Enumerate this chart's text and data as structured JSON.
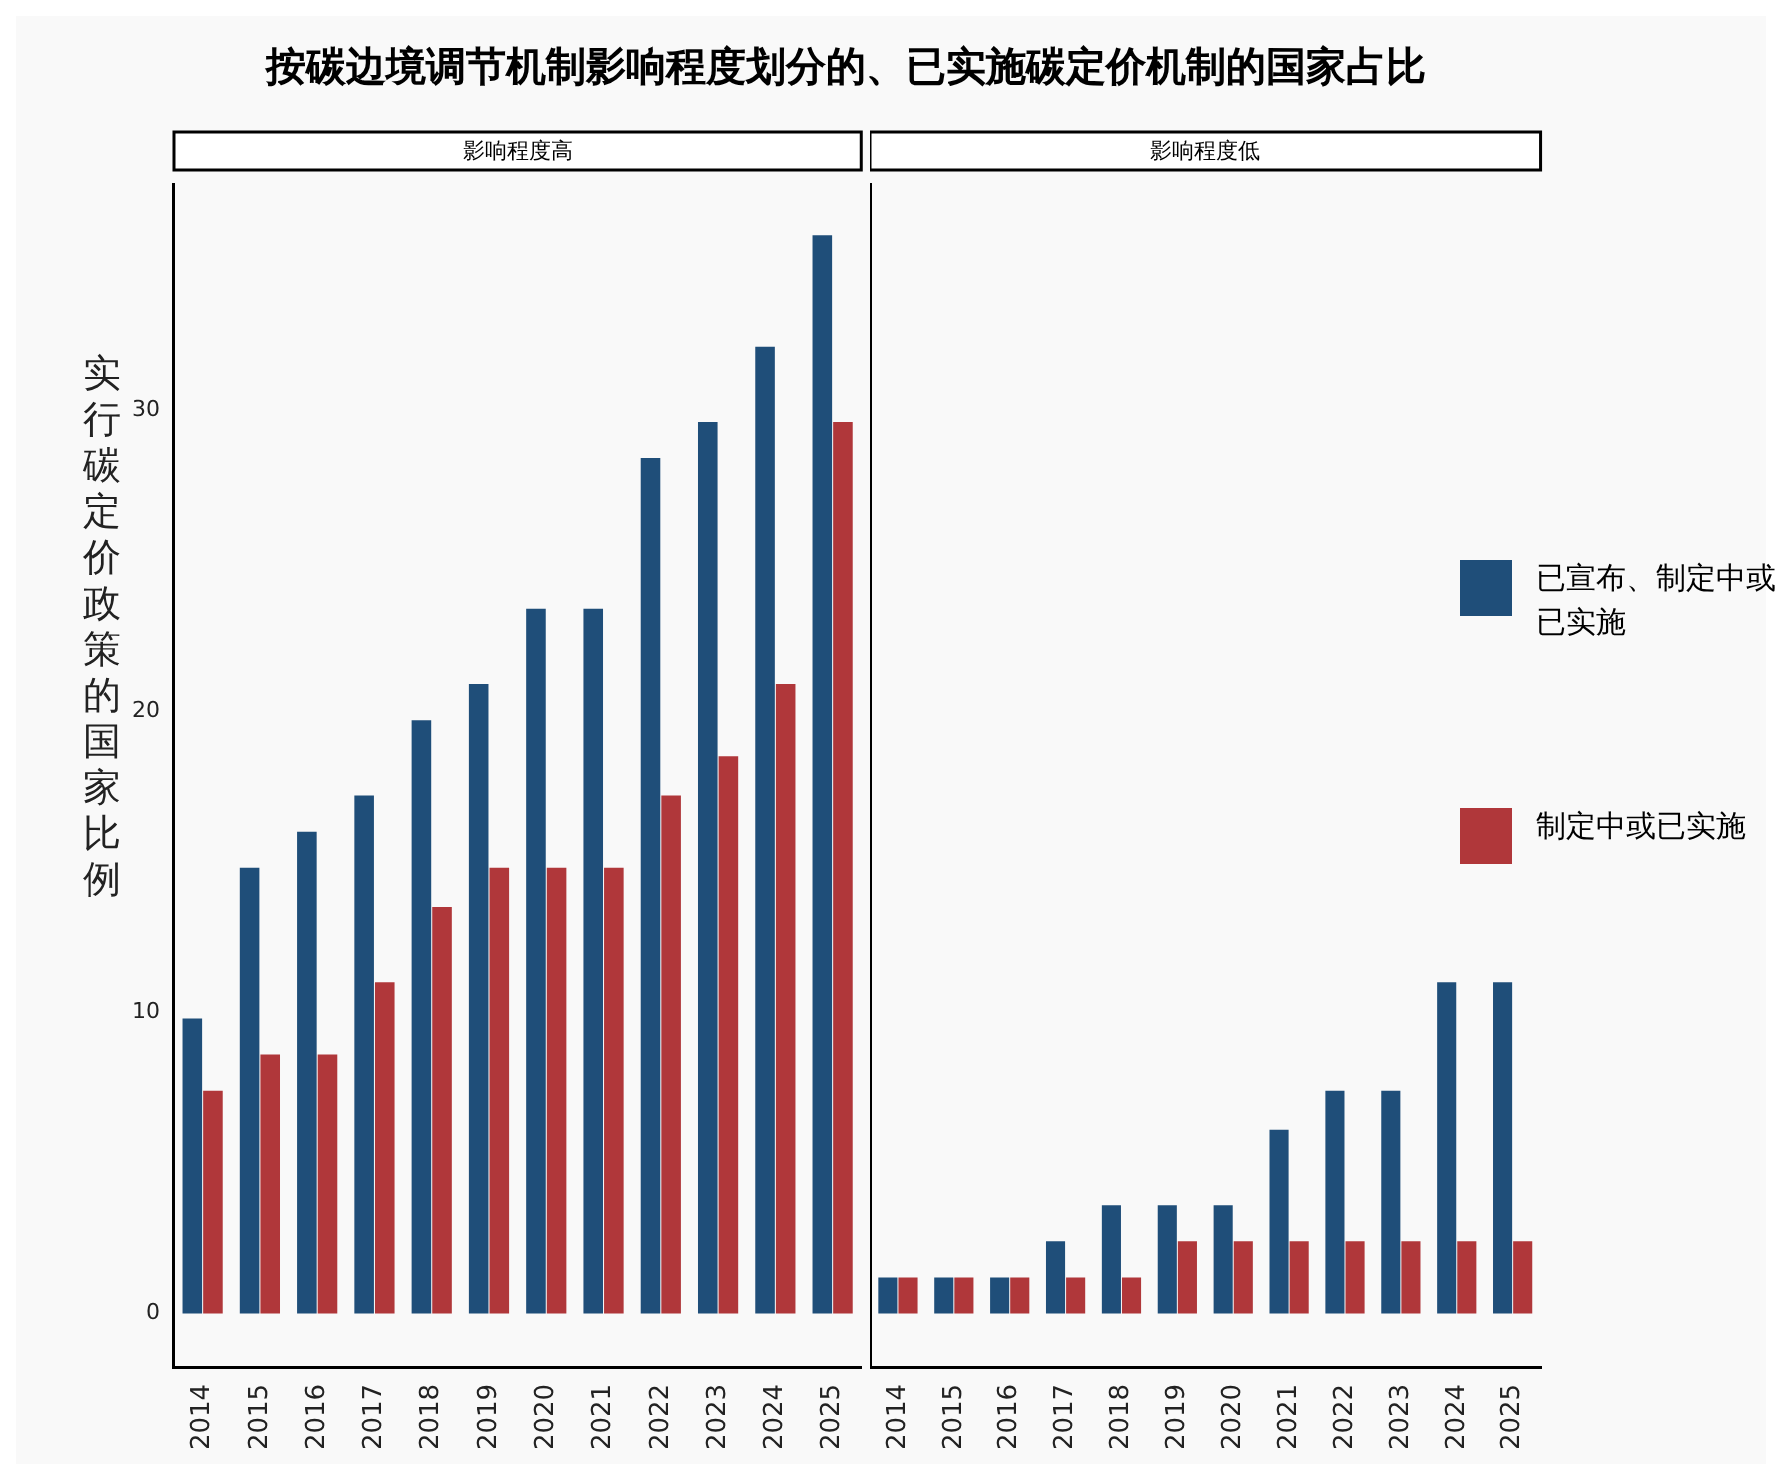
{
  "chart_data": [
    {
      "type": "bar",
      "title": "按碳边境调节机制影响程度划分的、已实施碳定价机制的国家占比",
      "subtitle": "影响程度高",
      "ylabel": "实行碳定价政策的国家比例",
      "categories": [
        "2014",
        "2015",
        "2016",
        "2017",
        "2018",
        "2019",
        "2020",
        "2021",
        "2022",
        "2023",
        "2024",
        "2025"
      ],
      "series": [
        {
          "name": "已宣布、制定中或已实施",
          "color": "#1f4e79",
          "values": [
            9.8,
            14.8,
            16.0,
            17.2,
            19.7,
            20.9,
            23.4,
            23.4,
            28.4,
            29.6,
            32.1,
            35.8
          ]
        },
        {
          "name": "制定中或已实施",
          "color": "#b0373a",
          "values": [
            7.4,
            8.6,
            8.6,
            11.0,
            13.5,
            14.8,
            14.8,
            14.8,
            17.2,
            18.5,
            20.9,
            29.6
          ]
        }
      ],
      "ylim": [
        -1.8,
        37.5
      ],
      "yticks": [
        0,
        10,
        20,
        30
      ],
      "grid": false,
      "legend": "right"
    },
    {
      "type": "bar",
      "subtitle": "影响程度低",
      "categories": [
        "2014",
        "2015",
        "2016",
        "2017",
        "2018",
        "2019",
        "2020",
        "2021",
        "2022",
        "2023",
        "2024",
        "2025"
      ],
      "series": [
        {
          "color": "#1f4e79",
          "values": [
            1.2,
            1.2,
            1.2,
            2.4,
            3.6,
            3.6,
            3.6,
            6.1,
            7.4,
            7.4,
            11.0,
            11.0
          ]
        },
        {
          "color": "#b0373a",
          "values": [
            1.2,
            1.2,
            1.2,
            1.2,
            1.2,
            2.4,
            2.4,
            2.4,
            2.4,
            2.4,
            2.4,
            2.4
          ]
        }
      ],
      "ylim": [
        -1.8,
        37.5
      ],
      "yticks": [
        0,
        10,
        20,
        30
      ],
      "grid": false,
      "tick_labels": "x"
    }
  ]
}
